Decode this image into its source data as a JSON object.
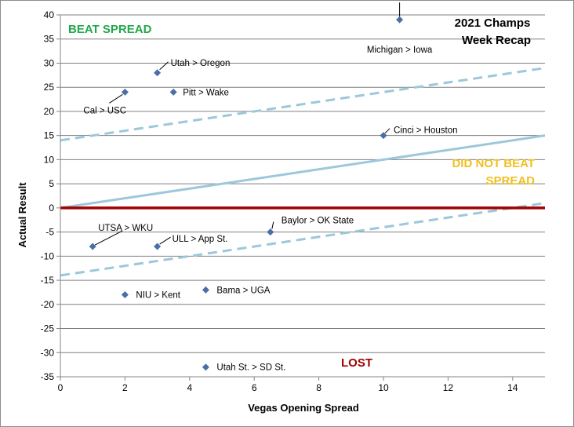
{
  "chart_data": {
    "type": "scatter",
    "title_lines": [
      "2021 Champs",
      "Week Recap"
    ],
    "xlabel": "Vegas Opening Spread",
    "ylabel": "Actual Result",
    "xlim": [
      0,
      15
    ],
    "ylim": [
      -35,
      40
    ],
    "x_ticks": [
      0,
      2,
      4,
      6,
      8,
      10,
      12,
      14
    ],
    "y_ticks": [
      -35,
      -30,
      -25,
      -20,
      -15,
      -10,
      -5,
      0,
      5,
      10,
      15,
      20,
      25,
      30,
      35,
      40
    ],
    "grid": "horizontal",
    "points": [
      {
        "label": "Michigan > Iowa",
        "x": 10.5,
        "y": 39
      },
      {
        "label": "Utah > Oregon",
        "x": 3,
        "y": 28
      },
      {
        "label": "Cal > USC",
        "x": 2,
        "y": 24
      },
      {
        "label": "Pitt > Wake",
        "x": 3.5,
        "y": 24
      },
      {
        "label": "Cinci > Houston",
        "x": 10,
        "y": 15
      },
      {
        "label": "Baylor > OK State",
        "x": 6.5,
        "y": -5
      },
      {
        "label": "UTSA > WKU",
        "x": 1,
        "y": -8
      },
      {
        "label": "ULL > App St.",
        "x": 3,
        "y": -8
      },
      {
        "label": "NIU > Kent",
        "x": 2,
        "y": -18
      },
      {
        "label": "Bama > UGA",
        "x": 4.5,
        "y": -17
      },
      {
        "label": "Utah St. > SD St.",
        "x": 4.5,
        "y": -33
      }
    ],
    "reference_lines": [
      {
        "name": "spread",
        "style": "solid",
        "color": "#9cc8da",
        "from": [
          0,
          0
        ],
        "to": [
          15,
          15
        ]
      },
      {
        "name": "upper-band",
        "style": "dashed",
        "color": "#9cc8da",
        "from": [
          0,
          14
        ],
        "to": [
          15,
          29
        ]
      },
      {
        "name": "lower-band",
        "style": "dashed",
        "color": "#9cc8da",
        "from": [
          0,
          -14
        ],
        "to": [
          15,
          1
        ]
      },
      {
        "name": "zero-line",
        "style": "solid",
        "color": "#a00000",
        "from": [
          0,
          0
        ],
        "to": [
          15,
          0
        ]
      }
    ],
    "zones": {
      "beat": "BEAT SPREAD",
      "not_beat_lines": [
        "DID NOT BEAT",
        "SPREAD"
      ],
      "lost": "LOST"
    }
  },
  "colors": {
    "beat": "#22a84a",
    "not_beat": "#f0c020",
    "lost": "#a00000",
    "marker": "#4a6fa5",
    "grid": "#7f7f7f"
  }
}
